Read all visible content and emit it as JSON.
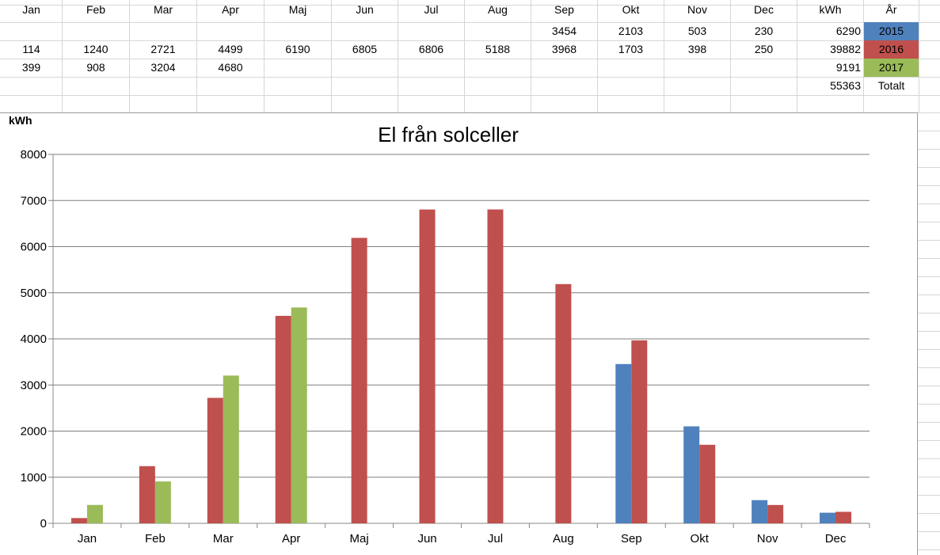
{
  "table": {
    "header": [
      "Jan",
      "Feb",
      "Mar",
      "Apr",
      "Maj",
      "Jun",
      "Jul",
      "Aug",
      "Sep",
      "Okt",
      "Nov",
      "Dec",
      "kWh",
      "År"
    ],
    "rows": [
      [
        "",
        "",
        "",
        "",
        "",
        "",
        "",
        "",
        "3454",
        "2103",
        "503",
        "230",
        "6290",
        "2015"
      ],
      [
        "114",
        "1240",
        "2721",
        "4499",
        "6190",
        "6805",
        "6806",
        "5188",
        "3968",
        "1703",
        "398",
        "250",
        "39882",
        "2016"
      ],
      [
        "399",
        "908",
        "3204",
        "4680",
        "",
        "",
        "",
        "",
        "",
        "",
        "",
        "",
        "9191",
        "2017"
      ],
      [
        "",
        "",
        "",
        "",
        "",
        "",
        "",
        "",
        "",
        "",
        "",
        "",
        "55363",
        "Totalt"
      ]
    ]
  },
  "colors": {
    "2015": "#4f81bd",
    "2016": "#c0504d",
    "2017": "#9bbb59"
  },
  "chart_data": {
    "type": "bar",
    "title": "El från solceller",
    "ylabel": "kWh",
    "xlabel": "",
    "ylim": [
      0,
      8000
    ],
    "yticks": [
      0,
      1000,
      2000,
      3000,
      4000,
      5000,
      6000,
      7000,
      8000
    ],
    "categories": [
      "Jan",
      "Feb",
      "Mar",
      "Apr",
      "Maj",
      "Jun",
      "Jul",
      "Aug",
      "Sep",
      "Okt",
      "Nov",
      "Dec"
    ],
    "series": [
      {
        "name": "2015",
        "color": "#4f81bd",
        "values": [
          null,
          null,
          null,
          null,
          null,
          null,
          null,
          null,
          3454,
          2103,
          503,
          230
        ]
      },
      {
        "name": "2016",
        "color": "#c0504d",
        "values": [
          114,
          1240,
          2721,
          4499,
          6190,
          6805,
          6806,
          5188,
          3968,
          1703,
          398,
          250
        ]
      },
      {
        "name": "2017",
        "color": "#9bbb59",
        "values": [
          399,
          908,
          3204,
          4680,
          null,
          null,
          null,
          null,
          null,
          null,
          null,
          null
        ]
      }
    ],
    "grid": true,
    "legend": "none"
  }
}
